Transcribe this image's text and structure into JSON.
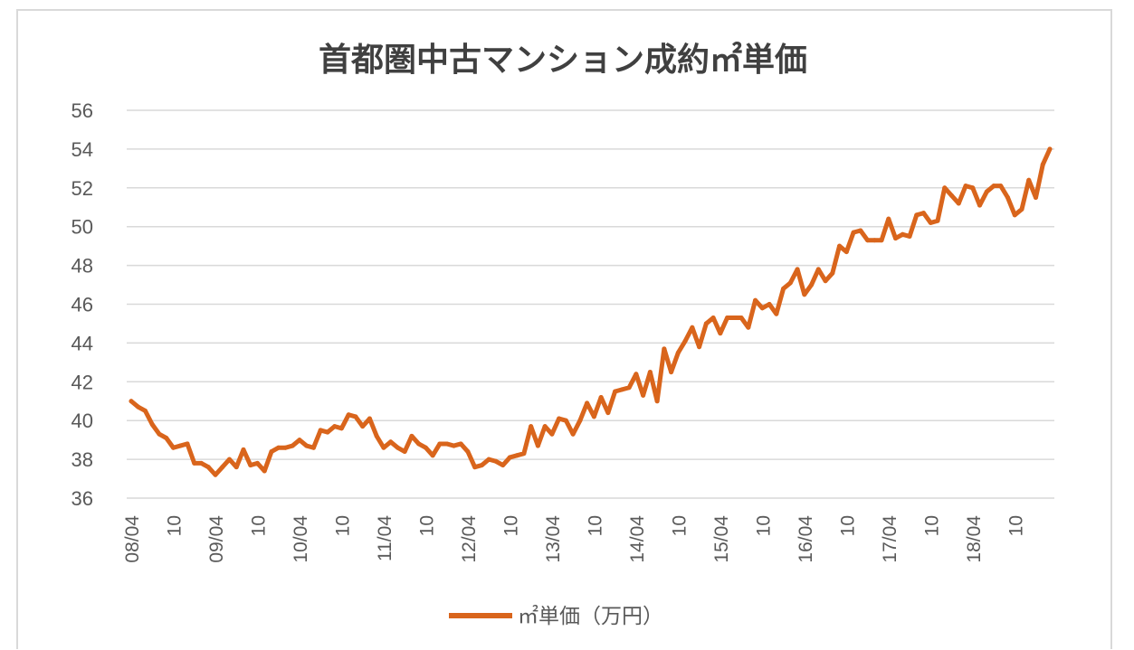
{
  "chart_data": {
    "type": "line",
    "title": "首都圏中古マンション成約㎡単価",
    "ylim": [
      36,
      56
    ],
    "yticks": [
      36,
      38,
      40,
      42,
      44,
      46,
      48,
      50,
      52,
      54,
      56
    ],
    "grid": "horizontal",
    "legend_position": "bottom",
    "x_tick_labels": [
      "08/04",
      "10",
      "09/04",
      "10",
      "10/04",
      "10",
      "11/04",
      "10",
      "12/04",
      "10",
      "13/04",
      "10",
      "14/04",
      "10",
      "15/04",
      "10",
      "16/04",
      "10",
      "17/04",
      "10",
      "18/04",
      "10"
    ],
    "series": [
      {
        "name": "㎡単価（万円）",
        "color": "#d9651c",
        "values": [
          41.0,
          40.7,
          40.5,
          39.8,
          39.3,
          39.1,
          38.6,
          38.7,
          38.8,
          37.8,
          37.8,
          37.6,
          37.2,
          37.6,
          38.0,
          37.6,
          38.5,
          37.7,
          37.8,
          37.4,
          38.4,
          38.6,
          38.6,
          38.7,
          39.0,
          38.7,
          38.6,
          39.5,
          39.4,
          39.7,
          39.6,
          40.3,
          40.2,
          39.7,
          40.1,
          39.2,
          38.6,
          38.9,
          38.6,
          38.4,
          39.2,
          38.8,
          38.6,
          38.2,
          38.8,
          38.8,
          38.7,
          38.8,
          38.4,
          37.6,
          37.7,
          38.0,
          37.9,
          37.7,
          38.1,
          38.2,
          38.3,
          39.7,
          38.7,
          39.7,
          39.3,
          40.1,
          40.0,
          39.3,
          40.0,
          40.9,
          40.2,
          41.2,
          40.4,
          41.5,
          41.6,
          41.7,
          42.4,
          41.3,
          42.5,
          41.0,
          43.7,
          42.5,
          43.5,
          44.1,
          44.8,
          43.8,
          45.0,
          45.3,
          44.5,
          45.3,
          45.3,
          45.3,
          44.8,
          46.2,
          45.8,
          46.0,
          45.5,
          46.8,
          47.1,
          47.8,
          46.5,
          47.0,
          47.8,
          47.2,
          47.6,
          49.0,
          48.7,
          49.7,
          49.8,
          49.3,
          49.3,
          49.3,
          50.4,
          49.4,
          49.6,
          49.5,
          50.6,
          50.7,
          50.2,
          50.3,
          52.0,
          51.6,
          51.2,
          52.1,
          52.0,
          51.1,
          51.8,
          52.1,
          52.1,
          51.5,
          50.6,
          50.9,
          52.4,
          51.5,
          53.2,
          54.0
        ]
      }
    ]
  }
}
